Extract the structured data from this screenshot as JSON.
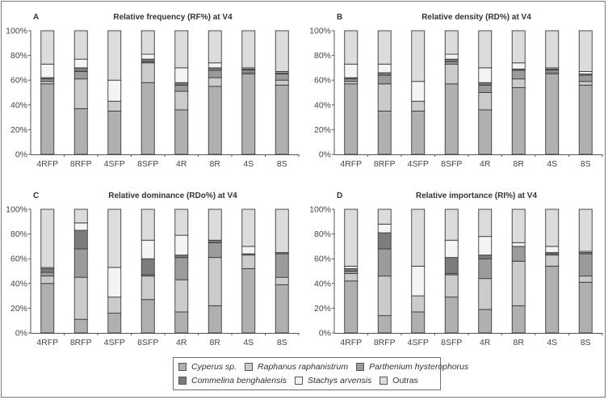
{
  "species": [
    {
      "name": "Cyperus sp.",
      "color": "#b0b0b0",
      "italic": true
    },
    {
      "name": "Raphanus raphanistrum",
      "color": "#cbcbcb",
      "italic": true
    },
    {
      "name": "Parthenium hysterophorus",
      "color": "#9b9b9b",
      "italic": true
    },
    {
      "name": "Commelina benghalensis",
      "color": "#7c7c7c",
      "italic": true
    },
    {
      "name": "Stachys arvensis",
      "color": "#f4f4f4",
      "italic": true
    },
    {
      "name": "Outras",
      "color": "#dcdcdc",
      "italic": false
    }
  ],
  "chart_data": [
    {
      "panel": "A",
      "type": "bar",
      "stacked": true,
      "title": "Relative frequency (RF%) at V4",
      "categories": [
        "4RFP",
        "8RFP",
        "4SFP",
        "8SFP",
        "4R",
        "8R",
        "4S",
        "8S"
      ],
      "yticks": [
        "0%",
        "20%",
        "40%",
        "60%",
        "80%",
        "100%"
      ],
      "ylim": [
        0,
        100
      ],
      "series": [
        {
          "name": "Cyperus sp.",
          "values": [
            57,
            37,
            35,
            58,
            36,
            55,
            65,
            56
          ]
        },
        {
          "name": "Raphanus raphanistrum",
          "values": [
            2,
            24,
            8,
            16,
            15,
            7,
            1,
            4
          ]
        },
        {
          "name": "Parthenium hysterophorus",
          "values": [
            2,
            6,
            0,
            1,
            5,
            6,
            2,
            5
          ]
        },
        {
          "name": "Commelina benghalensis",
          "values": [
            1,
            3,
            0,
            2,
            2,
            2,
            1,
            1
          ]
        },
        {
          "name": "Stachys arvensis",
          "values": [
            11,
            7,
            17,
            4,
            12,
            4,
            1,
            1
          ]
        },
        {
          "name": "Outras",
          "values": [
            27,
            23,
            40,
            19,
            30,
            26,
            30,
            33
          ]
        }
      ]
    },
    {
      "panel": "B",
      "type": "bar",
      "stacked": true,
      "title": "Relative density (RD%) at V4",
      "categories": [
        "4RFP",
        "8RFP",
        "4SFP",
        "8SFP",
        "4R",
        "8R",
        "4S",
        "8S"
      ],
      "yticks": [
        "0%",
        "20%",
        "40%",
        "60%",
        "80%",
        "100%"
      ],
      "ylim": [
        0,
        100
      ],
      "series": [
        {
          "name": "Cyperus sp.",
          "values": [
            57,
            35,
            35,
            57,
            36,
            54,
            65,
            56
          ]
        },
        {
          "name": "Raphanus raphanistrum",
          "values": [
            2,
            22,
            8,
            16,
            14,
            7,
            1,
            3
          ]
        },
        {
          "name": "Parthenium hysterophorus",
          "values": [
            2,
            7,
            0,
            2,
            6,
            7,
            2,
            5
          ]
        },
        {
          "name": "Commelina benghalensis",
          "values": [
            1,
            2,
            0,
            2,
            2,
            1,
            1,
            1
          ]
        },
        {
          "name": "Stachys arvensis",
          "values": [
            11,
            7,
            16,
            4,
            12,
            5,
            1,
            2
          ]
        },
        {
          "name": "Outras",
          "values": [
            27,
            27,
            41,
            19,
            30,
            26,
            30,
            33
          ]
        }
      ]
    },
    {
      "panel": "C",
      "type": "bar",
      "stacked": true,
      "title": "Relative dominance (RDo%) at V4",
      "categories": [
        "4RFP",
        "8RFP",
        "4SFP",
        "8SFP",
        "4R",
        "8R",
        "4S",
        "8S"
      ],
      "yticks": [
        "0%",
        "20%",
        "40%",
        "60%",
        "80%",
        "100%"
      ],
      "ylim": [
        0,
        100
      ],
      "series": [
        {
          "name": "Cyperus sp.",
          "values": [
            40,
            11,
            16,
            27,
            17,
            22,
            52,
            39
          ]
        },
        {
          "name": "Raphanus raphanistrum",
          "values": [
            6,
            34,
            13,
            19,
            26,
            39,
            11,
            6
          ]
        },
        {
          "name": "Parthenium hysterophorus",
          "values": [
            3,
            23,
            0,
            1,
            18,
            12,
            0,
            19
          ]
        },
        {
          "name": "Commelina benghalensis",
          "values": [
            3,
            15,
            0,
            13,
            2,
            2,
            1,
            1
          ]
        },
        {
          "name": "Stachys arvensis",
          "values": [
            1,
            6,
            24,
            15,
            16,
            0,
            6,
            0
          ]
        },
        {
          "name": "Outras",
          "values": [
            47,
            11,
            47,
            25,
            21,
            25,
            30,
            35
          ]
        }
      ]
    },
    {
      "panel": "D",
      "type": "bar",
      "stacked": true,
      "title": "Relative importance (RI%) at V4",
      "categories": [
        "4RFP",
        "8RFP",
        "4SFP",
        "8SFP",
        "4R",
        "8R",
        "4S",
        "8S"
      ],
      "yticks": [
        "0%",
        "20%",
        "40%",
        "60%",
        "80%",
        "100%"
      ],
      "ylim": [
        0,
        100
      ],
      "series": [
        {
          "name": "Cyperus sp.",
          "values": [
            42,
            14,
            17,
            29,
            19,
            22,
            54,
            41
          ]
        },
        {
          "name": "Raphanus raphanistrum",
          "values": [
            6,
            32,
            13,
            18,
            25,
            36,
            9,
            5
          ]
        },
        {
          "name": "Parthenium hysterophorus",
          "values": [
            2,
            22,
            0,
            1,
            16,
            12,
            1,
            18
          ]
        },
        {
          "name": "Commelina benghalensis",
          "values": [
            2,
            13,
            0,
            13,
            3,
            0,
            1,
            1
          ]
        },
        {
          "name": "Stachys arvensis",
          "values": [
            2,
            7,
            24,
            14,
            15,
            3,
            5,
            1
          ]
        },
        {
          "name": "Outras",
          "values": [
            46,
            12,
            46,
            25,
            22,
            27,
            30,
            34
          ]
        }
      ]
    }
  ]
}
